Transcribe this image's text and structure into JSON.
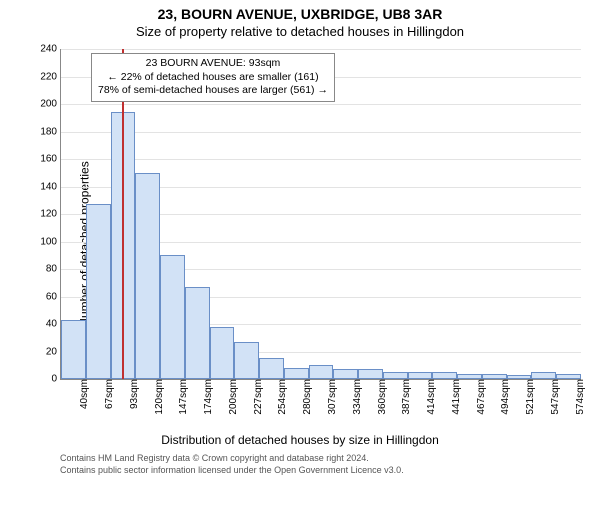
{
  "title_main": "23, BOURN AVENUE, UXBRIDGE, UB8 3AR",
  "title_sub": "Size of property relative to detached houses in Hillingdon",
  "ylabel": "Number of detached properties",
  "xlabel": "Distribution of detached houses by size in Hillingdon",
  "footer_line1": "Contains HM Land Registry data © Crown copyright and database right 2024.",
  "footer_line2": "Contains public sector information licensed under the Open Government Licence v3.0.",
  "chart": {
    "type": "bar",
    "ylim": [
      0,
      240
    ],
    "ytick_step": 20,
    "bar_fill": "#d2e2f6",
    "bar_stroke": "#6a8fc7",
    "grid_color": "#e3e3e3",
    "background": "#ffffff",
    "marker_color": "#c03030",
    "marker_x": "93sqm",
    "categories": [
      "40sqm",
      "67sqm",
      "93sqm",
      "120sqm",
      "147sqm",
      "174sqm",
      "200sqm",
      "227sqm",
      "254sqm",
      "280sqm",
      "307sqm",
      "334sqm",
      "360sqm",
      "387sqm",
      "414sqm",
      "441sqm",
      "467sqm",
      "494sqm",
      "521sqm",
      "547sqm",
      "574sqm"
    ],
    "values": [
      43,
      127,
      194,
      150,
      90,
      67,
      38,
      27,
      15,
      8,
      10,
      7,
      7,
      5,
      5,
      5,
      4,
      4,
      3,
      5,
      4
    ],
    "annotation": {
      "line1": "23 BOURN AVENUE: 93sqm",
      "line2": "← 22% of detached houses are smaller (161)",
      "line3": "78% of semi-detached houses are larger (561) →"
    },
    "title_fontsize": 14,
    "subtitle_fontsize": 13,
    "axis_label_fontsize": 12,
    "tick_fontsize": 10,
    "annot_fontsize": 10.5
  }
}
